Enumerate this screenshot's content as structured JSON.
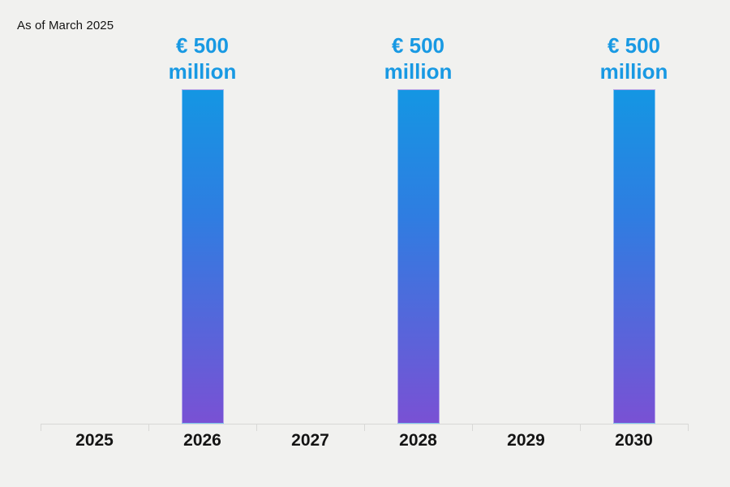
{
  "annotation": "As of March 2025",
  "colors": {
    "background": "#f1f1ef",
    "axis": "#d8d8d6",
    "value_label_blue": "#1899e3",
    "bar_gradient_top": "#1496e3",
    "bar_gradient_mid": "#2f7de1",
    "bar_gradient_bottom": "#7951d4",
    "text": "#141414"
  },
  "chart_data": {
    "type": "bar",
    "title": "",
    "annotation": "As of March 2025",
    "categories": [
      "2025",
      "2026",
      "2027",
      "2028",
      "2029",
      "2030"
    ],
    "values": [
      0,
      500,
      0,
      500,
      0,
      500
    ],
    "unit": "EUR million",
    "value_label_lines": [
      [],
      [
        "€ 500",
        "million"
      ],
      [],
      [
        "€ 500",
        "million"
      ],
      [],
      [
        "€ 500",
        "million"
      ]
    ],
    "xlabel": "",
    "ylabel": "",
    "ylim": [
      0,
      500
    ],
    "grid": false,
    "legend": false,
    "orientation": "vertical"
  }
}
